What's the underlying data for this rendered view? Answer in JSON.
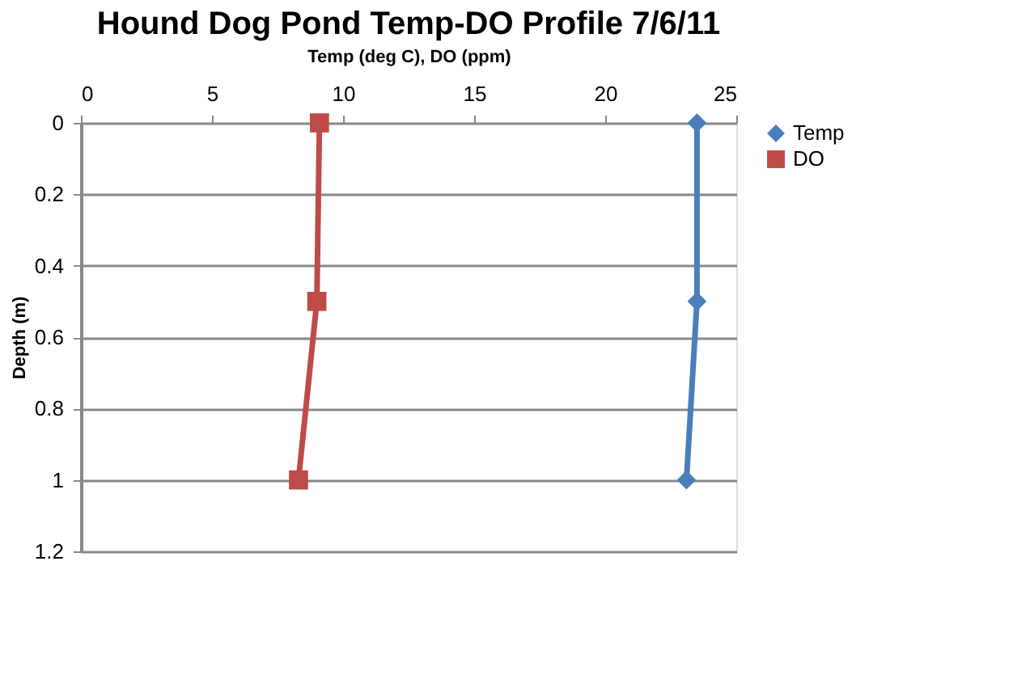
{
  "chart_data": {
    "type": "line",
    "title": "Hound Dog Pond Temp-DO Profile 7/6/11",
    "xlabel": "Temp (deg C), DO (ppm)",
    "ylabel": "Depth (m)",
    "xlim": [
      0,
      25
    ],
    "xticks": [
      0,
      5,
      10,
      15,
      20,
      25
    ],
    "ylim": [
      1.2,
      0
    ],
    "yticks": [
      0,
      0.2,
      0.4,
      0.6,
      0.8,
      1,
      1.2
    ],
    "grid": "y",
    "legend": "right",
    "series": [
      {
        "name": "Temp",
        "color": "#4a7ebb",
        "marker": "diamond",
        "x": [
          23.5,
          23.5,
          23.1
        ],
        "values": [
          0,
          0.5,
          1
        ]
      },
      {
        "name": "DO",
        "color": "#be4b48",
        "marker": "square",
        "x": [
          9.1,
          9.0,
          8.3
        ],
        "values": [
          0,
          0.5,
          1
        ]
      }
    ]
  }
}
